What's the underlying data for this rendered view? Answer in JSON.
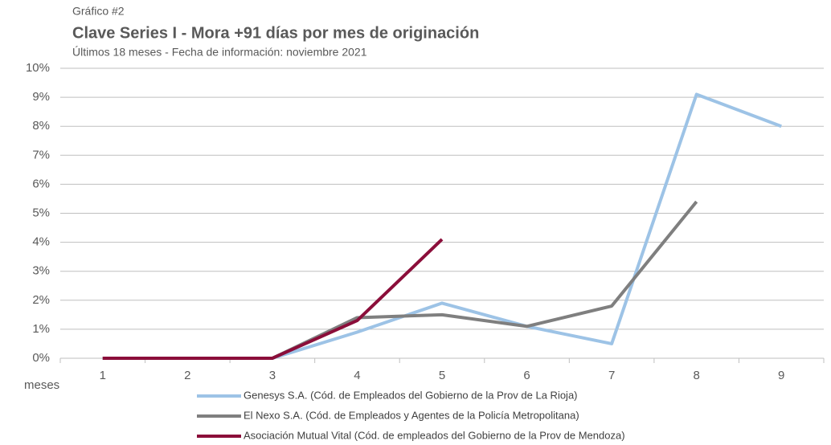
{
  "chart_data": {
    "type": "line",
    "pretitle": "Gráfico #2",
    "title": "Clave Series I - Mora +91 días por mes de originación",
    "subtitle": "Últimos  18 meses - Fecha de información: noviembre 2021",
    "x_label": "meses",
    "categories": [
      "1",
      "2",
      "3",
      "4",
      "5",
      "6",
      "7",
      "8",
      "9"
    ],
    "series": [
      {
        "name": "Genesys S.A. (Cód. de Empleados del Gobierno de la Prov de La Rioja)",
        "color": "#9dc3e6",
        "values": [
          0,
          0,
          0,
          0.9,
          1.9,
          1.1,
          0.5,
          9.1,
          8.0
        ]
      },
      {
        "name": "El Nexo S.A. (Cód. de Empleados y Agentes de la Policía Metropolitana)",
        "color": "#7f7f7f",
        "values": [
          0,
          0,
          0,
          1.4,
          1.5,
          1.1,
          1.8,
          5.4,
          null
        ]
      },
      {
        "name": "Asociación Mutual Vital (Cód. de empleados del Gobierno de la Prov de Mendoza)",
        "color": "#8b0e3a",
        "values": [
          0,
          0,
          0,
          1.3,
          4.1,
          null,
          null,
          null,
          null
        ]
      }
    ],
    "ylim": [
      0,
      10
    ],
    "yticks": [
      {
        "value": 0,
        "label": "0%"
      },
      {
        "value": 1,
        "label": "1%"
      },
      {
        "value": 2,
        "label": "2%"
      },
      {
        "value": 3,
        "label": "3%"
      },
      {
        "value": 4,
        "label": "4%"
      },
      {
        "value": 5,
        "label": "5%"
      },
      {
        "value": 6,
        "label": "6%"
      },
      {
        "value": 7,
        "label": "7%"
      },
      {
        "value": 8,
        "label": "8%"
      },
      {
        "value": 9,
        "label": "9%"
      },
      {
        "value": 10,
        "label": "10%"
      }
    ],
    "grid": true,
    "legend": "bottom"
  }
}
